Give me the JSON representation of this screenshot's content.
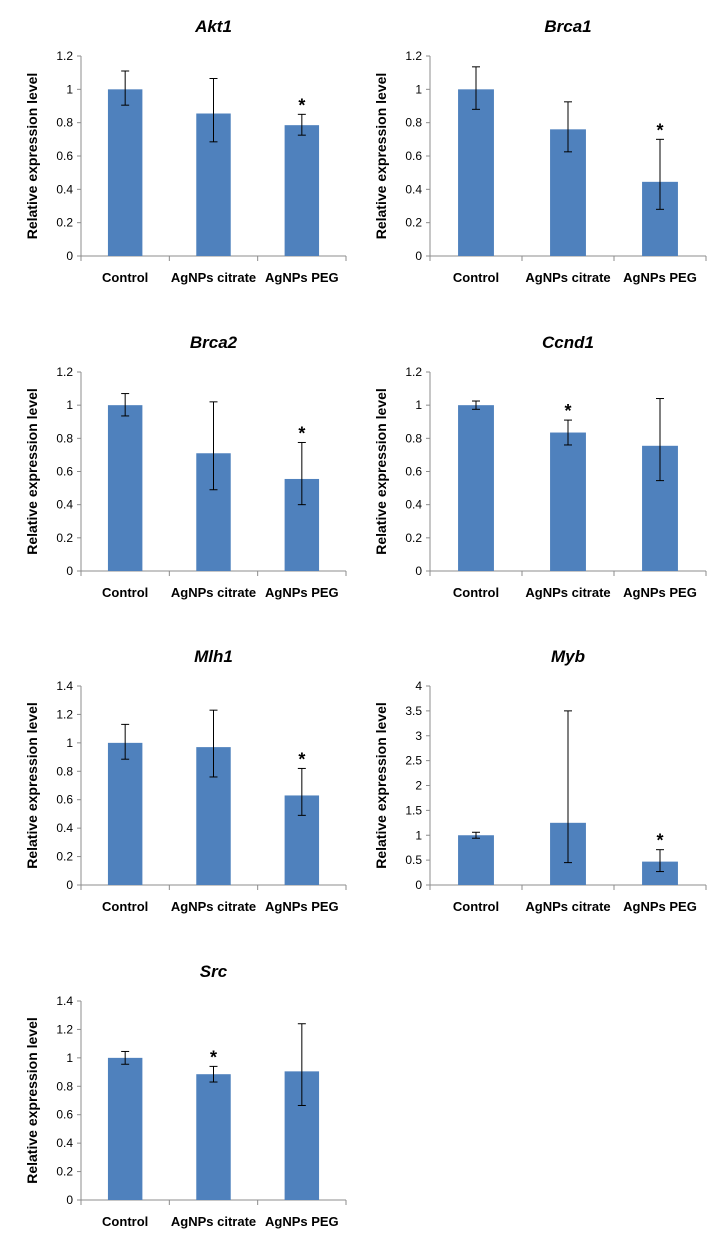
{
  "chart_data": [
    {
      "type": "bar",
      "title": "Akt1",
      "ylabel": "Relative expression level",
      "categories": [
        "Control",
        "AgNPs citrate",
        "AgNPs PEG"
      ],
      "values": [
        1.0,
        0.855,
        0.785
      ],
      "error_low": [
        0.905,
        0.685,
        0.725
      ],
      "error_high": [
        1.11,
        1.065,
        0.85
      ],
      "significant": [
        false,
        false,
        true
      ],
      "ylim": [
        0,
        1.2
      ],
      "yticks": [
        0,
        0.2,
        0.4,
        0.6,
        0.8,
        1,
        1.2
      ]
    },
    {
      "type": "bar",
      "title": "Brca1",
      "ylabel": "Relative expression level",
      "categories": [
        "Control",
        "AgNPs citrate",
        "AgNPs PEG"
      ],
      "values": [
        1.0,
        0.76,
        0.445
      ],
      "error_low": [
        0.88,
        0.625,
        0.28
      ],
      "error_high": [
        1.135,
        0.925,
        0.7
      ],
      "significant": [
        false,
        false,
        true
      ],
      "ylim": [
        0,
        1.2
      ],
      "yticks": [
        0,
        0.2,
        0.4,
        0.6,
        0.8,
        1,
        1.2
      ]
    },
    {
      "type": "bar",
      "title": "Brca2",
      "ylabel": "Relative expression level",
      "categories": [
        "Control",
        "AgNPs citrate",
        "AgNPs PEG"
      ],
      "values": [
        1.0,
        0.71,
        0.555
      ],
      "error_low": [
        0.935,
        0.49,
        0.4
      ],
      "error_high": [
        1.07,
        1.02,
        0.775
      ],
      "significant": [
        false,
        false,
        true
      ],
      "ylim": [
        0,
        1.2
      ],
      "yticks": [
        0,
        0.2,
        0.4,
        0.6,
        0.8,
        1,
        1.2
      ]
    },
    {
      "type": "bar",
      "title": "Ccnd1",
      "ylabel": "Relative expression level",
      "categories": [
        "Control",
        "AgNPs citrate",
        "AgNPs PEG"
      ],
      "values": [
        1.0,
        0.835,
        0.755
      ],
      "error_low": [
        0.975,
        0.76,
        0.545
      ],
      "error_high": [
        1.025,
        0.91,
        1.04
      ],
      "significant": [
        false,
        true,
        false
      ],
      "ylim": [
        0,
        1.2
      ],
      "yticks": [
        0,
        0.2,
        0.4,
        0.6,
        0.8,
        1,
        1.2
      ]
    },
    {
      "type": "bar",
      "title": "Mlh1",
      "ylabel": "Relative expression level",
      "categories": [
        "Control",
        "AgNPs citrate",
        "AgNPs PEG"
      ],
      "values": [
        1.0,
        0.97,
        0.63
      ],
      "error_low": [
        0.885,
        0.76,
        0.49
      ],
      "error_high": [
        1.13,
        1.23,
        0.82
      ],
      "significant": [
        false,
        false,
        true
      ],
      "ylim": [
        0,
        1.4
      ],
      "yticks": [
        0,
        0.2,
        0.4,
        0.6,
        0.8,
        1,
        1.2,
        1.4
      ]
    },
    {
      "type": "bar",
      "title": "Myb",
      "ylabel": "Relative expression level",
      "categories": [
        "Control",
        "AgNPs citrate",
        "AgNPs PEG"
      ],
      "values": [
        1.0,
        1.25,
        0.47
      ],
      "error_low": [
        0.94,
        0.45,
        0.27
      ],
      "error_high": [
        1.06,
        3.5,
        0.71
      ],
      "significant": [
        false,
        false,
        true
      ],
      "ylim": [
        0,
        4
      ],
      "yticks": [
        0,
        0.5,
        1,
        1.5,
        2,
        2.5,
        3,
        3.5,
        4
      ]
    },
    {
      "type": "bar",
      "title": "Src",
      "ylabel": "Relative expression level",
      "categories": [
        "Control",
        "AgNPs citrate",
        "AgNPs PEG"
      ],
      "values": [
        1.0,
        0.885,
        0.905
      ],
      "error_low": [
        0.955,
        0.83,
        0.665
      ],
      "error_high": [
        1.045,
        0.94,
        1.24
      ],
      "significant": [
        false,
        true,
        false
      ],
      "ylim": [
        0,
        1.4
      ],
      "yticks": [
        0,
        0.2,
        0.4,
        0.6,
        0.8,
        1,
        1.2,
        1.4
      ]
    }
  ],
  "significance_marker": "*",
  "colors": {
    "bar": "#4f81bd",
    "axis": "#8c8c8c",
    "text": "#000000"
  }
}
